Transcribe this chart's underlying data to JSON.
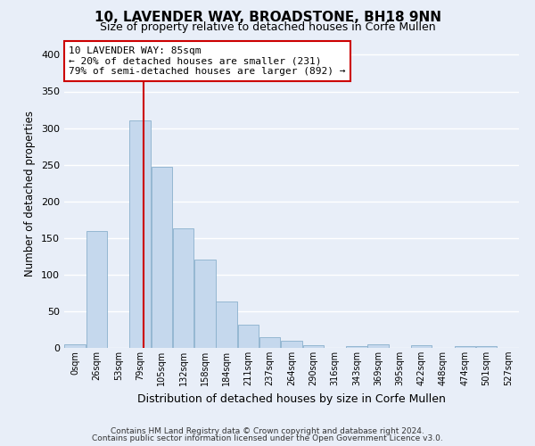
{
  "title": "10, LAVENDER WAY, BROADSTONE, BH18 9NN",
  "subtitle": "Size of property relative to detached houses in Corfe Mullen",
  "xlabel": "Distribution of detached houses by size in Corfe Mullen",
  "ylabel": "Number of detached properties",
  "bin_labels": [
    "0sqm",
    "26sqm",
    "53sqm",
    "79sqm",
    "105sqm",
    "132sqm",
    "158sqm",
    "184sqm",
    "211sqm",
    "237sqm",
    "264sqm",
    "290sqm",
    "316sqm",
    "343sqm",
    "369sqm",
    "395sqm",
    "422sqm",
    "448sqm",
    "474sqm",
    "501sqm",
    "527sqm"
  ],
  "bar_heights": [
    5,
    160,
    0,
    310,
    247,
    163,
    121,
    63,
    32,
    15,
    10,
    4,
    0,
    3,
    5,
    0,
    4,
    0,
    3,
    2,
    0
  ],
  "bar_color": "#c5d8ed",
  "bar_edge_color": "#8ab0cc",
  "vline_bin_index": 3.18,
  "vline_color": "#cc0000",
  "annotation_line1": "10 LAVENDER WAY: 85sqm",
  "annotation_line2": "← 20% of detached houses are smaller (231)",
  "annotation_line3": "79% of semi-detached houses are larger (892) →",
  "annotation_box_color": "#ffffff",
  "annotation_box_edge": "#cc0000",
  "ylim": [
    0,
    420
  ],
  "yticks": [
    0,
    50,
    100,
    150,
    200,
    250,
    300,
    350,
    400
  ],
  "footer1": "Contains HM Land Registry data © Crown copyright and database right 2024.",
  "footer2": "Contains public sector information licensed under the Open Government Licence v3.0.",
  "bg_color": "#e8eef8",
  "plot_bg_color": "#e8eef8",
  "grid_color": "#ffffff",
  "title_fontsize": 11,
  "subtitle_fontsize": 9
}
